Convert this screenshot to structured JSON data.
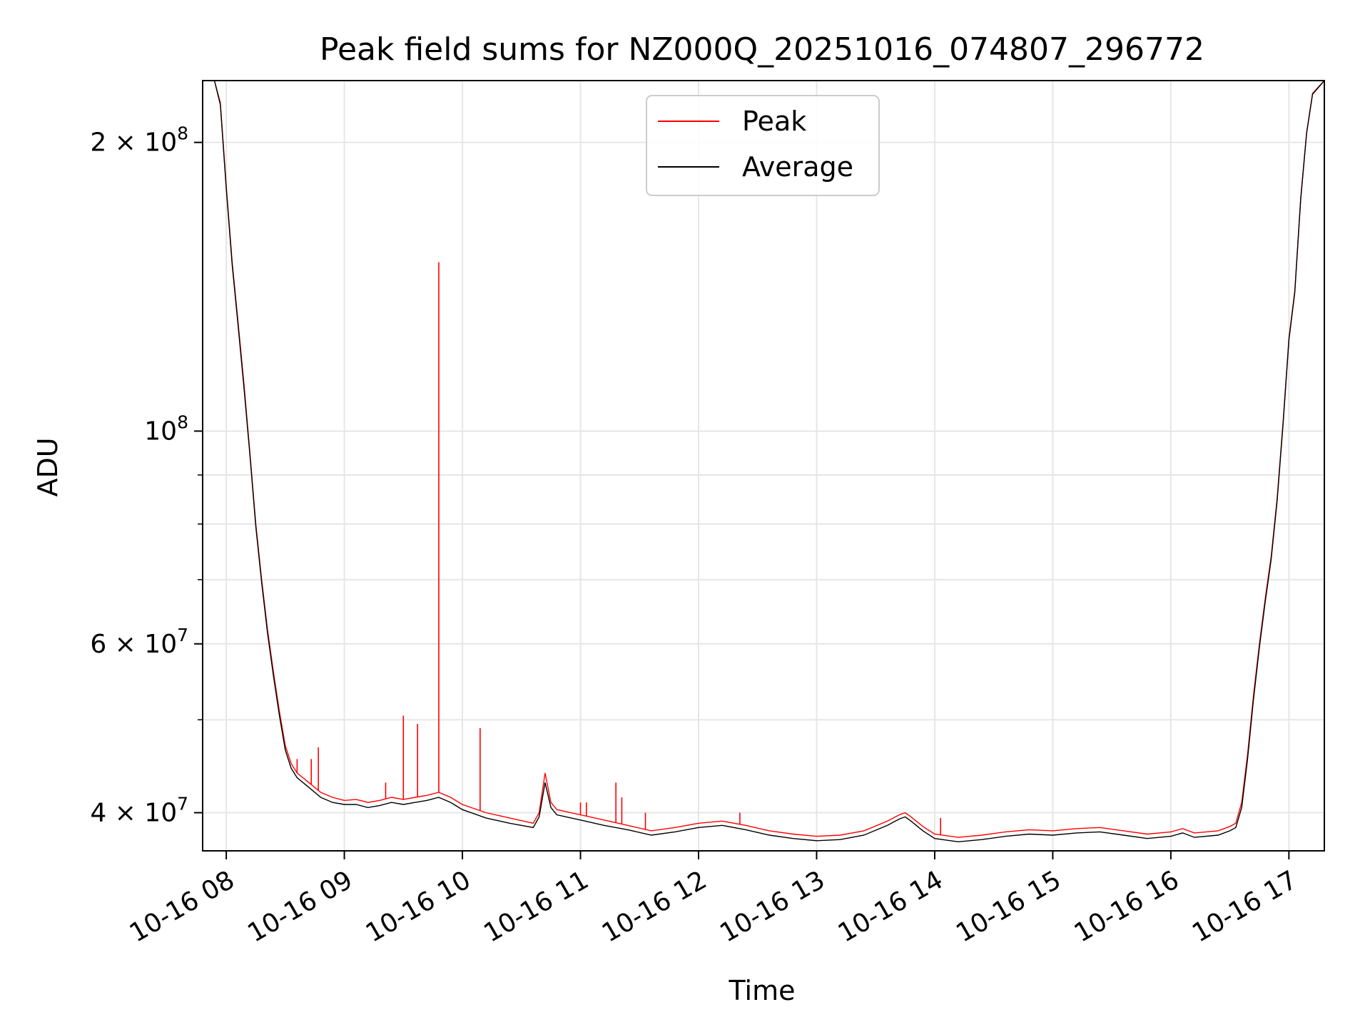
{
  "chart_data": {
    "type": "line",
    "title": "Peak field sums for NZ000Q_20251016_074807_296772",
    "xlabel": "Time",
    "ylabel": "ADU",
    "yscale": "log",
    "ylim": [
      36500000,
      232000000
    ],
    "xlim": [
      7.8,
      17.3
    ],
    "grid": true,
    "legend_position": "upper-center",
    "x_ticks": [
      {
        "value": 8,
        "label": "10-16 08"
      },
      {
        "value": 9,
        "label": "10-16 09"
      },
      {
        "value": 10,
        "label": "10-16 10"
      },
      {
        "value": 11,
        "label": "10-16 11"
      },
      {
        "value": 12,
        "label": "10-16 12"
      },
      {
        "value": 13,
        "label": "10-16 13"
      },
      {
        "value": 14,
        "label": "10-16 14"
      },
      {
        "value": 15,
        "label": "10-16 15"
      },
      {
        "value": 16,
        "label": "10-16 16"
      },
      {
        "value": 17,
        "label": "10-16 17"
      }
    ],
    "y_major_ticks": [
      {
        "value": 40000000,
        "mantissa": "4",
        "exponent": "7",
        "plain": false
      },
      {
        "value": 60000000,
        "mantissa": "6",
        "exponent": "7",
        "plain": false
      },
      {
        "value": 100000000,
        "mantissa": "",
        "exponent": "8",
        "plain": true
      },
      {
        "value": 200000000,
        "mantissa": "2",
        "exponent": "8",
        "plain": false
      }
    ],
    "y_minor_ticks": [
      50000000,
      70000000,
      80000000,
      90000000
    ],
    "series": [
      {
        "name": "Peak",
        "color": "#ff0000",
        "x": [
          7.8,
          7.9,
          7.95,
          8.0,
          8.05,
          8.1,
          8.15,
          8.2,
          8.25,
          8.3,
          8.35,
          8.4,
          8.45,
          8.5,
          8.55,
          8.6,
          8.7,
          8.8,
          8.9,
          9.0,
          9.1,
          9.2,
          9.3,
          9.4,
          9.5,
          9.6,
          9.7,
          9.8,
          9.9,
          10.0,
          10.2,
          10.4,
          10.6,
          10.65,
          10.7,
          10.75,
          10.8,
          11.0,
          11.2,
          11.4,
          11.6,
          11.8,
          12.0,
          12.2,
          12.4,
          12.6,
          12.8,
          13.0,
          13.2,
          13.4,
          13.6,
          13.7,
          13.75,
          13.8,
          13.9,
          14.0,
          14.2,
          14.4,
          14.6,
          14.8,
          15.0,
          15.2,
          15.4,
          15.6,
          15.8,
          16.0,
          16.1,
          16.2,
          16.4,
          16.5,
          16.55,
          16.6,
          16.65,
          16.7,
          16.75,
          16.8,
          16.85,
          16.9,
          16.95,
          17.0,
          17.05,
          17.1,
          17.15,
          17.2,
          17.3
        ],
        "y": [
          232000000,
          232000000,
          220000000,
          180000000,
          150000000,
          130000000,
          112000000,
          95000000,
          80000000,
          70000000,
          62000000,
          56000000,
          51000000,
          47000000,
          45000000,
          44000000,
          43000000,
          42000000,
          41500000,
          41200000,
          41300000,
          41000000,
          41200000,
          41500000,
          41300000,
          41500000,
          41700000,
          42000000,
          41500000,
          40800000,
          40000000,
          39500000,
          39000000,
          40000000,
          44000000,
          41000000,
          40300000,
          39800000,
          39300000,
          38800000,
          38300000,
          38600000,
          39000000,
          39200000,
          38800000,
          38300000,
          38000000,
          37800000,
          37900000,
          38300000,
          39200000,
          39800000,
          40000000,
          39600000,
          38700000,
          38000000,
          37700000,
          37900000,
          38200000,
          38400000,
          38300000,
          38500000,
          38600000,
          38300000,
          38000000,
          38200000,
          38500000,
          38100000,
          38300000,
          38700000,
          39000000,
          41000000,
          46000000,
          53000000,
          60000000,
          67000000,
          74000000,
          85000000,
          102000000,
          125000000,
          140000000,
          175000000,
          205000000,
          225000000,
          232000000
        ]
      },
      {
        "name": "Average",
        "color": "#000000",
        "x": [
          7.8,
          7.9,
          7.95,
          8.0,
          8.05,
          8.1,
          8.15,
          8.2,
          8.25,
          8.3,
          8.35,
          8.4,
          8.45,
          8.5,
          8.55,
          8.6,
          8.7,
          8.8,
          8.9,
          9.0,
          9.1,
          9.2,
          9.3,
          9.4,
          9.5,
          9.6,
          9.7,
          9.8,
          9.9,
          10.0,
          10.2,
          10.4,
          10.6,
          10.65,
          10.7,
          10.75,
          10.8,
          11.0,
          11.2,
          11.4,
          11.6,
          11.8,
          12.0,
          12.2,
          12.4,
          12.6,
          12.8,
          13.0,
          13.2,
          13.4,
          13.6,
          13.7,
          13.75,
          13.8,
          13.9,
          14.0,
          14.2,
          14.4,
          14.6,
          14.8,
          15.0,
          15.2,
          15.4,
          15.6,
          15.8,
          16.0,
          16.1,
          16.2,
          16.4,
          16.5,
          16.55,
          16.6,
          16.65,
          16.7,
          16.75,
          16.8,
          16.85,
          16.9,
          16.95,
          17.0,
          17.05,
          17.1,
          17.15,
          17.2,
          17.3
        ],
        "y": [
          232000000,
          232000000,
          219000000,
          179000000,
          149000000,
          129000000,
          111000000,
          94500000,
          79500000,
          69500000,
          61500000,
          55500000,
          50500000,
          46500000,
          44500000,
          43500000,
          42500000,
          41500000,
          41000000,
          40800000,
          40800000,
          40500000,
          40700000,
          41000000,
          40800000,
          41000000,
          41200000,
          41500000,
          41000000,
          40300000,
          39500000,
          39000000,
          38600000,
          39600000,
          43000000,
          40500000,
          39800000,
          39300000,
          38800000,
          38400000,
          37900000,
          38200000,
          38600000,
          38800000,
          38400000,
          37900000,
          37600000,
          37400000,
          37500000,
          37900000,
          38800000,
          39400000,
          39600000,
          39200000,
          38300000,
          37600000,
          37300000,
          37500000,
          37800000,
          38000000,
          37900000,
          38100000,
          38200000,
          37900000,
          37600000,
          37800000,
          38100000,
          37700000,
          37900000,
          38300000,
          38600000,
          40500000,
          45500000,
          52500000,
          59500000,
          66500000,
          73500000,
          84500000,
          101500000,
          124500000,
          139500000,
          174500000,
          204500000,
          224500000,
          232000000
        ]
      }
    ],
    "spikes": [
      {
        "x": 8.6,
        "y": 45500000
      },
      {
        "x": 8.72,
        "y": 45500000
      },
      {
        "x": 8.78,
        "y": 46800000
      },
      {
        "x": 9.35,
        "y": 43000000
      },
      {
        "x": 9.5,
        "y": 50500000
      },
      {
        "x": 9.62,
        "y": 49500000
      },
      {
        "x": 9.8,
        "y": 150000000
      },
      {
        "x": 10.15,
        "y": 49000000
      },
      {
        "x": 11.0,
        "y": 41000000
      },
      {
        "x": 11.05,
        "y": 41000000
      },
      {
        "x": 11.3,
        "y": 43000000
      },
      {
        "x": 11.35,
        "y": 41500000
      },
      {
        "x": 11.55,
        "y": 40000000
      },
      {
        "x": 12.35,
        "y": 40000000
      },
      {
        "x": 14.05,
        "y": 39500000
      }
    ]
  }
}
